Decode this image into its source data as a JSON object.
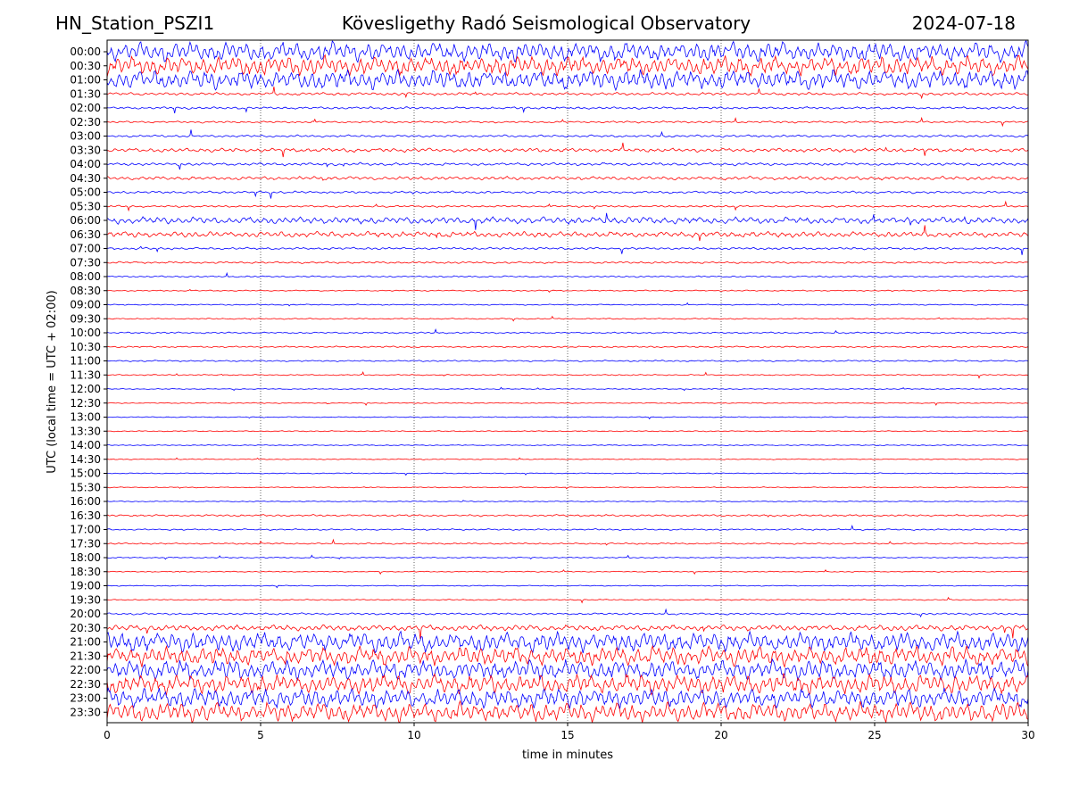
{
  "header": {
    "station": "HN_Station_PSZI1",
    "title": "Kövesligethy Radó Seismological Observatory",
    "date": "2024-07-18"
  },
  "chart_data": {
    "type": "line",
    "title": "Kövesligethy Radó Seismological Observatory",
    "xlabel": "time in minutes",
    "ylabel": "UTC (local time = UTC + 02:00)",
    "xlim": [
      0,
      30
    ],
    "x_ticks": [
      "0",
      "5",
      "10",
      "15",
      "20",
      "25",
      "30"
    ],
    "y_ticks": [
      "00:00",
      "00:30",
      "01:00",
      "01:30",
      "02:00",
      "02:30",
      "03:00",
      "03:30",
      "04:00",
      "04:30",
      "05:00",
      "05:30",
      "06:00",
      "06:30",
      "07:00",
      "07:30",
      "08:00",
      "08:30",
      "09:00",
      "09:30",
      "10:00",
      "10:30",
      "11:00",
      "11:30",
      "12:00",
      "12:30",
      "13:00",
      "13:30",
      "14:00",
      "14:30",
      "15:00",
      "15:30",
      "16:00",
      "16:30",
      "17:00",
      "17:30",
      "18:00",
      "18:30",
      "19:00",
      "19:30",
      "20:00",
      "20:30",
      "21:00",
      "21:30",
      "22:00",
      "22:30",
      "23:00",
      "23:30"
    ],
    "vertical_grid": true,
    "grid_style": "dotted",
    "colors": [
      "#0000ff",
      "#ff0000"
    ],
    "trace_amplitude": [
      1.0,
      1.0,
      1.0,
      0.15,
      0.12,
      0.1,
      0.12,
      0.2,
      0.15,
      0.18,
      0.12,
      0.1,
      0.35,
      0.3,
      0.12,
      0.1,
      0.08,
      0.06,
      0.06,
      0.06,
      0.08,
      0.08,
      0.08,
      0.06,
      0.05,
      0.05,
      0.05,
      0.05,
      0.05,
      0.05,
      0.05,
      0.05,
      0.05,
      0.1,
      0.08,
      0.08,
      0.06,
      0.05,
      0.05,
      0.06,
      0.1,
      0.3,
      1.0,
      1.0,
      1.0,
      1.0,
      1.0,
      1.0
    ]
  }
}
